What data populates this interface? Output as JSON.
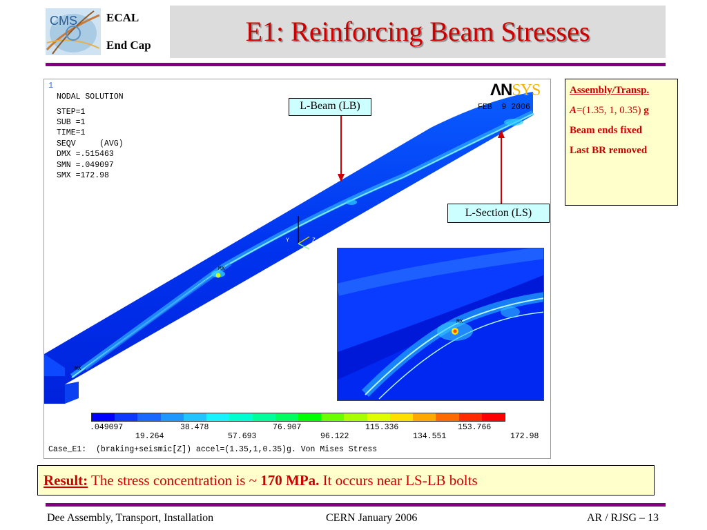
{
  "header": {
    "logo_text": "CMS",
    "ecal": "ECAL",
    "endcap": "End Cap",
    "title": "E1: Reinforcing Beam Stresses",
    "colors": {
      "title": "#cc0000",
      "rule": "#800080",
      "band": "#dcdcdc"
    }
  },
  "figure": {
    "window_number": "1",
    "readout": [
      "NODAL SOLUTION",
      "STEP=1",
      "SUB =1",
      "TIME=1",
      "SEQV     (AVG)",
      "DMX =.515463",
      "SMN =.049097",
      "SMX =172.98"
    ],
    "logo_an": "ΛN",
    "logo_sys": "SYS",
    "date": "FEB  9 2006",
    "mx_label": "MX",
    "axes": {
      "y": "Y",
      "z": "Z",
      "x": "X"
    },
    "legend": {
      "colors": [
        "#0000ff",
        "#0b39ff",
        "#1769ff",
        "#1e98ff",
        "#21c4ff",
        "#17f2ff",
        "#00ffd0",
        "#00ff9a",
        "#00ff5e",
        "#00ff00",
        "#6aff00",
        "#a8ff00",
        "#dfff00",
        "#ffdf00",
        "#ffa800",
        "#ff6a00",
        "#ff2a00",
        "#ff0000"
      ],
      "ticks_top": [
        ".049097",
        "38.478",
        "76.907",
        "115.336",
        "153.766"
      ],
      "ticks_bottom": [
        "19.264",
        "57.693",
        "96.122",
        "134.551",
        "172.98"
      ],
      "min": 0.049097,
      "max": 172.98
    },
    "caption": "Case_E1:  (braking+seismic[Z]) accel=(1.35,1,0.35)g. Von Mises Stress"
  },
  "callouts": {
    "lb": "L-Beam (LB)",
    "ls": "L-Section (LS)"
  },
  "assembly": {
    "head": "Assembly/Transp.",
    "accel_symbol": "A",
    "accel_eq": "=",
    "accel_value": "(1.35, 1, 0.35)",
    "accel_unit": " g",
    "line3": "Beam ends fixed",
    "line4": "Last BR removed"
  },
  "result": {
    "head": "Result:",
    "text1": " The stress concentration is ~ ",
    "value": "170 MPa.",
    "text2": " It occurs near LS-LB bolts"
  },
  "footer": {
    "left": "Dee Assembly, Transport, Installation",
    "center": "CERN  January 2006",
    "right": "AR / RJSG – 13"
  }
}
